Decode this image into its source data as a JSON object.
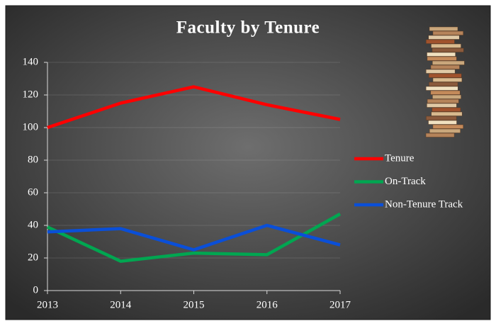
{
  "chart_data": {
    "type": "line",
    "title": "Faculty by Tenure",
    "categories": [
      "2013",
      "2014",
      "2015",
      "2016",
      "2017"
    ],
    "series": [
      {
        "name": "Tenure",
        "color": "#ff0000",
        "values": [
          100,
          115,
          125,
          114,
          105
        ]
      },
      {
        "name": "On-Track",
        "color": "#00a651",
        "values": [
          39,
          18,
          23,
          22,
          47
        ]
      },
      {
        "name": "Non-Tenure Track",
        "color": "#0a4fd8",
        "values": [
          36,
          38,
          25,
          40,
          28
        ]
      }
    ],
    "ylim": [
      0,
      140
    ],
    "yticks": [
      0,
      20,
      40,
      60,
      80,
      100,
      120,
      140
    ],
    "grid": true,
    "legend": "right"
  }
}
